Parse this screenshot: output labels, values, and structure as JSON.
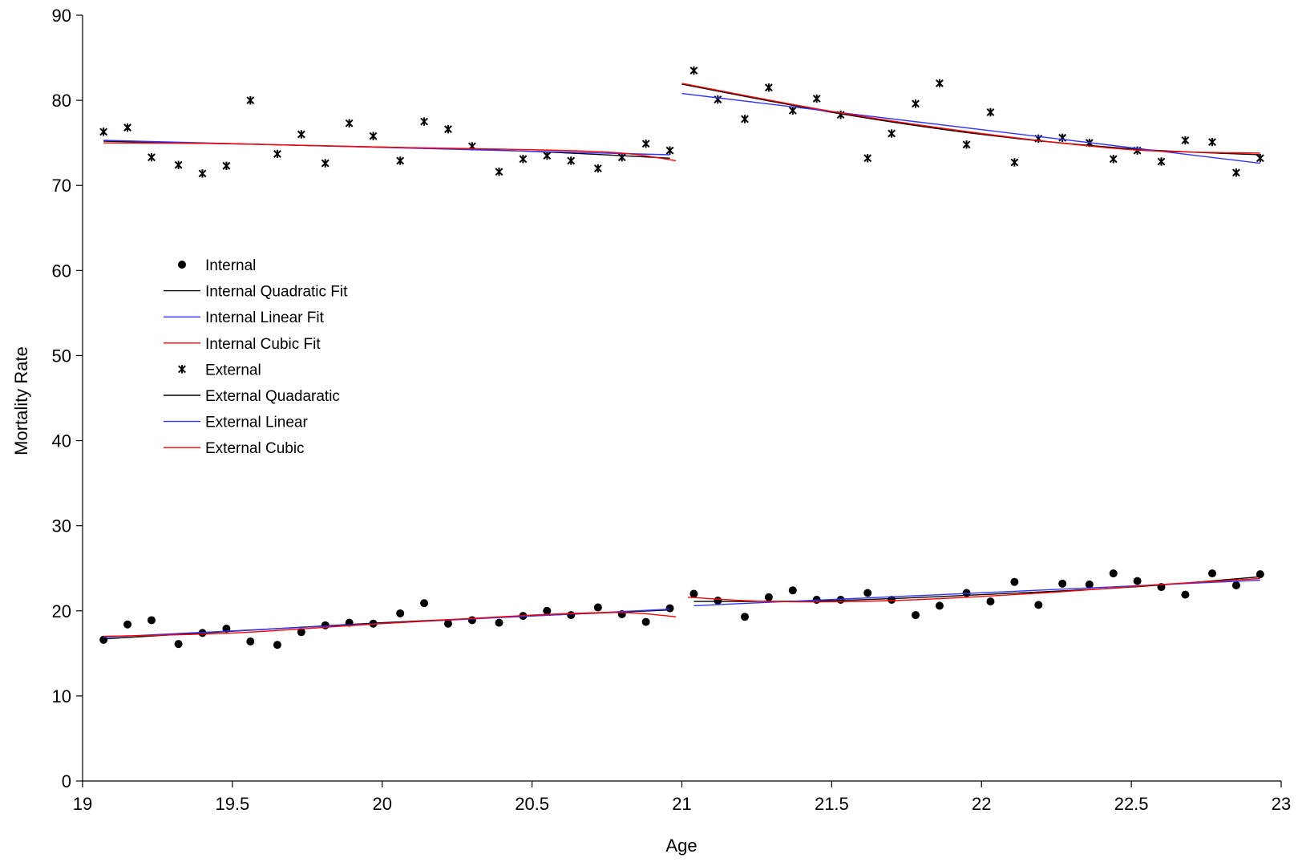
{
  "chart_data": {
    "type": "scatter",
    "xlabel": "Age",
    "ylabel": "Mortality Rate",
    "xlim": [
      19,
      23
    ],
    "ylim": [
      0,
      90
    ],
    "xticks": [
      19,
      19.5,
      20,
      20.5,
      21,
      21.5,
      22,
      22.5,
      23
    ],
    "yticks": [
      0,
      10,
      20,
      30,
      40,
      50,
      60,
      70,
      80,
      90
    ],
    "grid": false,
    "legend_position": "left-middle",
    "series": [
      {
        "name": "Internal",
        "kind": "scatter",
        "marker": "circle",
        "color": "#000000",
        "points": [
          [
            19.07,
            16.6
          ],
          [
            19.15,
            18.4
          ],
          [
            19.23,
            18.9
          ],
          [
            19.32,
            16.1
          ],
          [
            19.4,
            17.4
          ],
          [
            19.48,
            17.9
          ],
          [
            19.56,
            16.4
          ],
          [
            19.65,
            16.0
          ],
          [
            19.73,
            17.5
          ],
          [
            19.81,
            18.3
          ],
          [
            19.89,
            18.6
          ],
          [
            19.97,
            18.5
          ],
          [
            20.06,
            19.7
          ],
          [
            20.14,
            20.9
          ],
          [
            20.22,
            18.5
          ],
          [
            20.3,
            18.9
          ],
          [
            20.39,
            18.6
          ],
          [
            20.47,
            19.4
          ],
          [
            20.55,
            20.0
          ],
          [
            20.63,
            19.5
          ],
          [
            20.72,
            20.4
          ],
          [
            20.8,
            19.6
          ],
          [
            20.88,
            18.7
          ],
          [
            20.96,
            20.3
          ],
          [
            21.04,
            22.0
          ],
          [
            21.12,
            21.2
          ],
          [
            21.21,
            19.3
          ],
          [
            21.29,
            21.6
          ],
          [
            21.37,
            22.4
          ],
          [
            21.45,
            21.3
          ],
          [
            21.53,
            21.3
          ],
          [
            21.62,
            22.1
          ],
          [
            21.7,
            21.3
          ],
          [
            21.78,
            19.5
          ],
          [
            21.86,
            20.6
          ],
          [
            21.95,
            22.1
          ],
          [
            22.03,
            21.1
          ],
          [
            22.11,
            23.4
          ],
          [
            22.19,
            20.7
          ],
          [
            22.27,
            23.2
          ],
          [
            22.36,
            23.1
          ],
          [
            22.44,
            24.4
          ],
          [
            22.52,
            23.5
          ],
          [
            22.6,
            22.8
          ],
          [
            22.68,
            21.9
          ],
          [
            22.77,
            24.4
          ],
          [
            22.85,
            23.0
          ],
          [
            22.93,
            24.3
          ]
        ]
      },
      {
        "name": "Internal Quadratic Fit",
        "kind": "line",
        "color": "#000000",
        "segments": [
          [
            [
              19.07,
              16.7
            ],
            [
              19.5,
              17.6
            ],
            [
              20.0,
              18.6
            ],
            [
              20.5,
              19.4
            ],
            [
              20.96,
              20.1
            ]
          ],
          [
            [
              21.04,
              21.1
            ],
            [
              21.5,
              21.2
            ],
            [
              22.0,
              21.9
            ],
            [
              22.5,
              22.8
            ],
            [
              22.93,
              24.0
            ]
          ]
        ]
      },
      {
        "name": "Internal Linear Fit",
        "kind": "line",
        "color": "#3333ff",
        "segments": [
          [
            [
              19.07,
              16.9
            ],
            [
              20.96,
              20.2
            ]
          ],
          [
            [
              21.04,
              20.6
            ],
            [
              22.93,
              23.6
            ]
          ]
        ]
      },
      {
        "name": "Internal Cubic Fit",
        "kind": "line",
        "color": "#ff0000",
        "segments": [
          [
            [
              19.07,
              17.0
            ],
            [
              19.5,
              17.4
            ],
            [
              20.0,
              18.5
            ],
            [
              20.5,
              19.5
            ],
            [
              20.8,
              19.8
            ],
            [
              20.98,
              19.3
            ]
          ],
          [
            [
              21.02,
              21.6
            ],
            [
              21.3,
              21.1
            ],
            [
              21.7,
              21.2
            ],
            [
              22.2,
              22.1
            ],
            [
              22.6,
              23.1
            ],
            [
              22.93,
              23.8
            ]
          ]
        ]
      },
      {
        "name": "External",
        "kind": "scatter",
        "marker": "asterisk",
        "color": "#000000",
        "points": [
          [
            19.07,
            76.3
          ],
          [
            19.15,
            76.8
          ],
          [
            19.23,
            73.3
          ],
          [
            19.32,
            72.4
          ],
          [
            19.4,
            71.4
          ],
          [
            19.48,
            72.3
          ],
          [
            19.56,
            80.0
          ],
          [
            19.65,
            73.7
          ],
          [
            19.73,
            76.0
          ],
          [
            19.81,
            72.6
          ],
          [
            19.89,
            77.3
          ],
          [
            19.97,
            75.8
          ],
          [
            20.06,
            72.9
          ],
          [
            20.14,
            77.5
          ],
          [
            20.22,
            76.6
          ],
          [
            20.3,
            74.6
          ],
          [
            20.39,
            71.6
          ],
          [
            20.47,
            73.1
          ],
          [
            20.55,
            73.5
          ],
          [
            20.63,
            72.9
          ],
          [
            20.72,
            72.0
          ],
          [
            20.8,
            73.3
          ],
          [
            20.88,
            74.9
          ],
          [
            20.96,
            74.1
          ],
          [
            21.04,
            83.5
          ],
          [
            21.12,
            80.1
          ],
          [
            21.21,
            77.8
          ],
          [
            21.29,
            81.5
          ],
          [
            21.37,
            78.8
          ],
          [
            21.45,
            80.2
          ],
          [
            21.53,
            78.3
          ],
          [
            21.62,
            73.2
          ],
          [
            21.7,
            76.1
          ],
          [
            21.78,
            79.6
          ],
          [
            21.86,
            82.0
          ],
          [
            21.95,
            74.8
          ],
          [
            22.03,
            78.6
          ],
          [
            22.11,
            72.7
          ],
          [
            22.19,
            75.5
          ],
          [
            22.27,
            75.6
          ],
          [
            22.36,
            75.0
          ],
          [
            22.44,
            73.1
          ],
          [
            22.52,
            74.1
          ],
          [
            22.6,
            72.8
          ],
          [
            22.68,
            75.3
          ],
          [
            22.77,
            75.1
          ],
          [
            22.85,
            71.5
          ],
          [
            22.93,
            73.2
          ]
        ]
      },
      {
        "name": "External Quadaratic",
        "kind": "line",
        "color": "#000000",
        "segments": [
          [
            [
              19.07,
              75.2
            ],
            [
              20.0,
              74.5
            ],
            [
              20.5,
              74.0
            ],
            [
              20.96,
              73.2
            ]
          ],
          [
            [
              21.0,
              81.9
            ],
            [
              21.5,
              78.6
            ],
            [
              22.0,
              76.0
            ],
            [
              22.5,
              74.3
            ],
            [
              22.93,
              73.6
            ]
          ]
        ]
      },
      {
        "name": "External Linear",
        "kind": "line",
        "color": "#3333ff",
        "segments": [
          [
            [
              19.07,
              75.3
            ],
            [
              20.96,
              73.6
            ]
          ],
          [
            [
              21.0,
              80.8
            ],
            [
              22.93,
              72.6
            ]
          ]
        ]
      },
      {
        "name": "External Cubic",
        "kind": "line",
        "color": "#ff0000",
        "segments": [
          [
            [
              19.07,
              75.0
            ],
            [
              19.5,
              74.9
            ],
            [
              20.0,
              74.5
            ],
            [
              20.5,
              74.2
            ],
            [
              20.8,
              73.8
            ],
            [
              20.98,
              72.9
            ]
          ],
          [
            [
              21.0,
              82.0
            ],
            [
              21.5,
              78.7
            ],
            [
              22.0,
              76.1
            ],
            [
              22.5,
              74.2
            ],
            [
              22.93,
              73.8
            ]
          ]
        ]
      }
    ]
  }
}
